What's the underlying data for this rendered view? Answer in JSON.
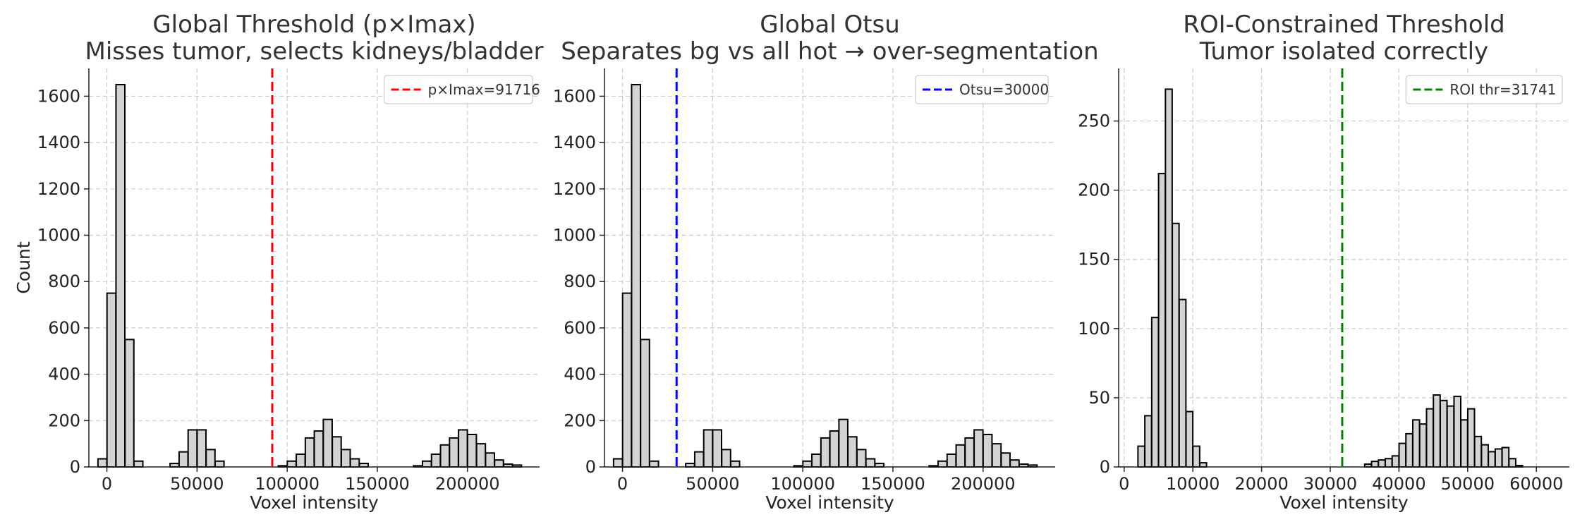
{
  "chart_data": [
    {
      "type": "bar",
      "title": [
        "Global Threshold (p×Imax)",
        "Misses tumor, selects kidneys/bladder"
      ],
      "xlabel": "Voxel intensity",
      "ylabel": "Count",
      "xlim": [
        -10000,
        240000
      ],
      "ylim": [
        0,
        1720
      ],
      "xticks": [
        0,
        50000,
        100000,
        150000,
        200000
      ],
      "xtick_labels": [
        "0",
        "50000",
        "100000",
        "150000",
        "200000"
      ],
      "yticks": [
        0,
        200,
        400,
        600,
        800,
        1000,
        1200,
        1400,
        1600
      ],
      "ytick_labels": [
        "0",
        "200",
        "400",
        "600",
        "800",
        "1000",
        "1200",
        "1400",
        "1600"
      ],
      "grid": true,
      "bin_width": 4900,
      "bins": [
        [
          -2500,
          35
        ],
        [
          2500,
          750
        ],
        [
          7500,
          1650
        ],
        [
          12500,
          550
        ],
        [
          17500,
          25
        ],
        [
          37500,
          15
        ],
        [
          42500,
          65
        ],
        [
          47500,
          160
        ],
        [
          52500,
          160
        ],
        [
          57500,
          75
        ],
        [
          62500,
          25
        ],
        [
          97500,
          5
        ],
        [
          102500,
          25
        ],
        [
          107500,
          55
        ],
        [
          112500,
          125
        ],
        [
          117500,
          155
        ],
        [
          122500,
          205
        ],
        [
          127500,
          130
        ],
        [
          132500,
          75
        ],
        [
          137500,
          35
        ],
        [
          142500,
          15
        ],
        [
          172500,
          5
        ],
        [
          177500,
          25
        ],
        [
          182500,
          55
        ],
        [
          187500,
          95
        ],
        [
          192500,
          125
        ],
        [
          197500,
          160
        ],
        [
          202500,
          140
        ],
        [
          207500,
          100
        ],
        [
          212500,
          60
        ],
        [
          217500,
          30
        ],
        [
          222500,
          12
        ],
        [
          227500,
          8
        ]
      ],
      "threshold": {
        "value": 91716,
        "label": "p×Imax=91716",
        "color": "#ff0000"
      },
      "legend_loc": "upper-right",
      "show_ylabel": true
    },
    {
      "type": "bar",
      "title": [
        "Global Otsu",
        "Separates bg vs all hot → over-segmentation"
      ],
      "xlabel": "Voxel intensity",
      "ylabel": "",
      "xlim": [
        -10000,
        240000
      ],
      "ylim": [
        0,
        1720
      ],
      "xticks": [
        0,
        50000,
        100000,
        150000,
        200000
      ],
      "xtick_labels": [
        "0",
        "50000",
        "100000",
        "150000",
        "200000"
      ],
      "yticks": [
        0,
        200,
        400,
        600,
        800,
        1000,
        1200,
        1400,
        1600
      ],
      "ytick_labels": [
        "0",
        "200",
        "400",
        "600",
        "800",
        "1000",
        "1200",
        "1400",
        "1600"
      ],
      "grid": true,
      "bin_width": 4900,
      "bins": [
        [
          -2500,
          35
        ],
        [
          2500,
          750
        ],
        [
          7500,
          1650
        ],
        [
          12500,
          550
        ],
        [
          17500,
          25
        ],
        [
          37500,
          15
        ],
        [
          42500,
          65
        ],
        [
          47500,
          160
        ],
        [
          52500,
          160
        ],
        [
          57500,
          75
        ],
        [
          62500,
          25
        ],
        [
          97500,
          5
        ],
        [
          102500,
          25
        ],
        [
          107500,
          55
        ],
        [
          112500,
          125
        ],
        [
          117500,
          155
        ],
        [
          122500,
          205
        ],
        [
          127500,
          130
        ],
        [
          132500,
          75
        ],
        [
          137500,
          35
        ],
        [
          142500,
          15
        ],
        [
          172500,
          5
        ],
        [
          177500,
          25
        ],
        [
          182500,
          55
        ],
        [
          187500,
          95
        ],
        [
          192500,
          125
        ],
        [
          197500,
          160
        ],
        [
          202500,
          140
        ],
        [
          207500,
          100
        ],
        [
          212500,
          60
        ],
        [
          217500,
          30
        ],
        [
          222500,
          12
        ],
        [
          227500,
          8
        ]
      ],
      "threshold": {
        "value": 30000,
        "label": "Otsu=30000",
        "color": "#0000ff"
      },
      "legend_loc": "upper-right",
      "show_ylabel": false
    },
    {
      "type": "bar",
      "title": [
        "ROI-Constrained Threshold",
        "Tumor isolated correctly"
      ],
      "xlabel": "Voxel intensity",
      "ylabel": "",
      "xlim": [
        -800,
        64800
      ],
      "ylim": [
        0,
        288
      ],
      "xticks": [
        0,
        10000,
        20000,
        30000,
        40000,
        50000,
        60000
      ],
      "xtick_labels": [
        "0",
        "10000",
        "20000",
        "30000",
        "40000",
        "50000",
        "60000"
      ],
      "yticks": [
        0,
        50,
        100,
        150,
        200,
        250
      ],
      "ytick_labels": [
        "0",
        "50",
        "100",
        "150",
        "200",
        "250"
      ],
      "grid": true,
      "bin_width": 980,
      "bins": [
        [
          2500,
          15
        ],
        [
          3500,
          37
        ],
        [
          4500,
          108
        ],
        [
          5500,
          212
        ],
        [
          6500,
          273
        ],
        [
          7500,
          176
        ],
        [
          8500,
          121
        ],
        [
          9500,
          40
        ],
        [
          10500,
          15
        ],
        [
          11500,
          3
        ],
        [
          35500,
          2
        ],
        [
          36500,
          4
        ],
        [
          37500,
          5
        ],
        [
          38500,
          6
        ],
        [
          39500,
          8
        ],
        [
          40500,
          17
        ],
        [
          41500,
          24
        ],
        [
          42500,
          34
        ],
        [
          43500,
          31
        ],
        [
          44500,
          42
        ],
        [
          45500,
          52
        ],
        [
          46500,
          48
        ],
        [
          47500,
          44
        ],
        [
          48500,
          51
        ],
        [
          49500,
          34
        ],
        [
          50500,
          42
        ],
        [
          51500,
          22
        ],
        [
          52500,
          16
        ],
        [
          53500,
          11
        ],
        [
          54500,
          13
        ],
        [
          55500,
          14
        ],
        [
          56500,
          6
        ],
        [
          57500,
          1
        ]
      ],
      "threshold": {
        "value": 31741,
        "label": "ROI thr=31741",
        "color": "#008000"
      },
      "legend_loc": "upper-right",
      "show_ylabel": false
    }
  ]
}
